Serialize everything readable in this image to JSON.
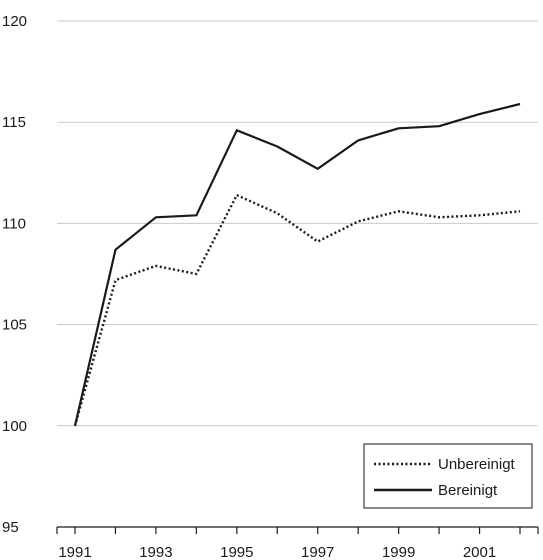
{
  "chart_data": {
    "type": "line",
    "title": "",
    "xlabel": "",
    "ylabel": "",
    "ylim": [
      95,
      120
    ],
    "xlim": [
      1991,
      2002
    ],
    "y_ticks": [
      95,
      100,
      105,
      110,
      115,
      120
    ],
    "x_ticks": [
      1991,
      1993,
      1995,
      1997,
      1999,
      2001
    ],
    "grid": "horizontal",
    "legend_position": "bottom-right",
    "series": [
      {
        "name": "Unbereinigt",
        "style": "dotted",
        "color": "#1a1a1a",
        "x": [
          1991,
          1992,
          1993,
          1994,
          1995,
          1996,
          1997,
          1998,
          1999,
          2000,
          2001,
          2002
        ],
        "values": [
          100.0,
          107.2,
          107.9,
          107.5,
          111.4,
          110.5,
          109.1,
          110.1,
          110.6,
          110.3,
          110.4,
          110.6
        ]
      },
      {
        "name": "Bereinigt",
        "style": "solid",
        "color": "#1a1a1a",
        "x": [
          1991,
          1992,
          1993,
          1994,
          1995,
          1996,
          1997,
          1998,
          1999,
          2000,
          2001,
          2002
        ],
        "values": [
          100.0,
          108.7,
          110.3,
          110.4,
          114.6,
          113.8,
          112.7,
          114.1,
          114.7,
          114.8,
          115.4,
          115.9
        ]
      }
    ]
  }
}
